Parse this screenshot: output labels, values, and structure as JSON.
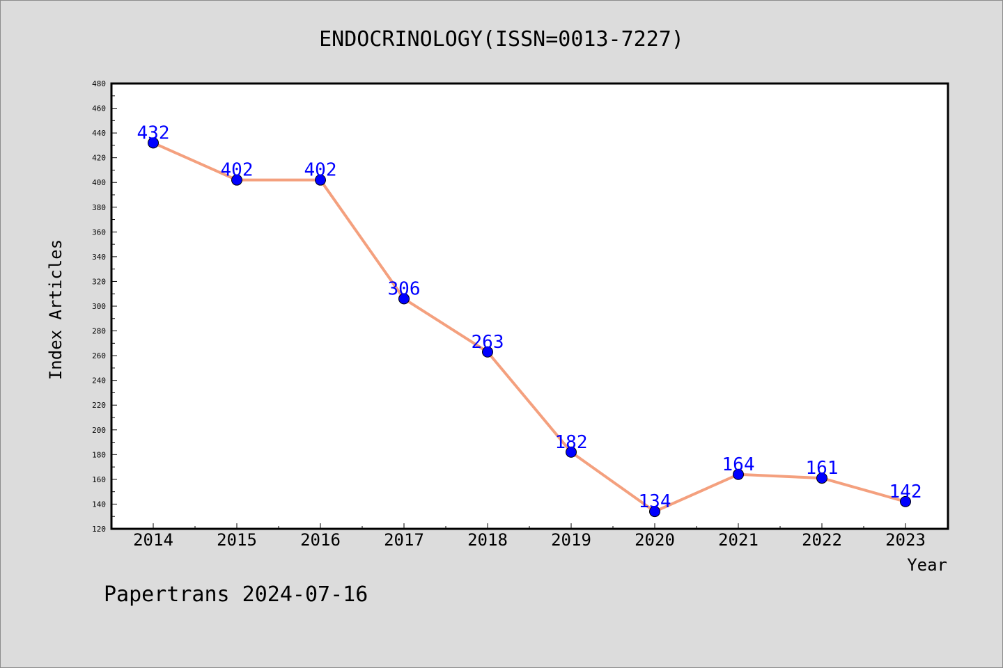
{
  "colors": {
    "background": "#dcdcdc",
    "plot_background": "#ffffff",
    "line": "#f4a07e",
    "marker": "#0000ff",
    "data_label": "#0000ff",
    "axis": "#000000"
  },
  "footer": {
    "text": "Papertrans 2024-07-16"
  },
  "chart_data": {
    "type": "line",
    "title": "ENDOCRINOLOGY(ISSN=0013-7227)",
    "xlabel": "Year",
    "ylabel": "Index Articles",
    "categories": [
      "2014",
      "2015",
      "2016",
      "2017",
      "2018",
      "2019",
      "2020",
      "2021",
      "2022",
      "2023"
    ],
    "values": [
      432,
      402,
      402,
      306,
      263,
      182,
      134,
      164,
      161,
      142
    ],
    "ylim": [
      120,
      480
    ],
    "ytick_step": 20,
    "ytick_labels": [
      "120",
      "140",
      "160",
      "180",
      "200",
      "220",
      "240",
      "260",
      "280",
      "300",
      "320",
      "340",
      "360",
      "380",
      "400",
      "420",
      "440",
      "460",
      "480"
    ],
    "grid": false,
    "legend": "none",
    "data_labels": true
  }
}
